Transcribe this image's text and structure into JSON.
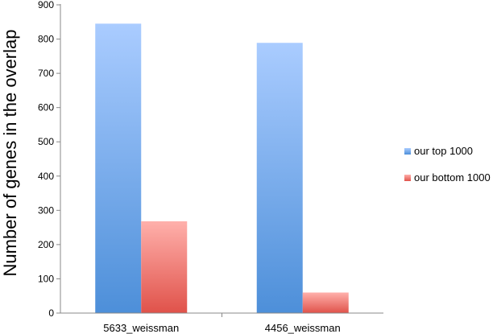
{
  "chart_data": {
    "type": "bar",
    "title": "",
    "xlabel": "",
    "ylabel": "Number of genes in the overlap",
    "categories": [
      "5633_weissman",
      "4456_weissman"
    ],
    "series": [
      {
        "name": "our top 1000",
        "values": [
          845,
          789
        ],
        "color_top": "#aaccff",
        "color_bottom": "#4d8fd9"
      },
      {
        "name": "our bottom 1000",
        "values": [
          268,
          60
        ],
        "color_top": "#ffb0ab",
        "color_bottom": "#e0524a"
      }
    ],
    "ylim": [
      0,
      900
    ],
    "yticks": [
      "0",
      "100",
      "200",
      "300",
      "400",
      "500",
      "600",
      "700",
      "800",
      "900"
    ],
    "grid": false,
    "legend": "right"
  }
}
